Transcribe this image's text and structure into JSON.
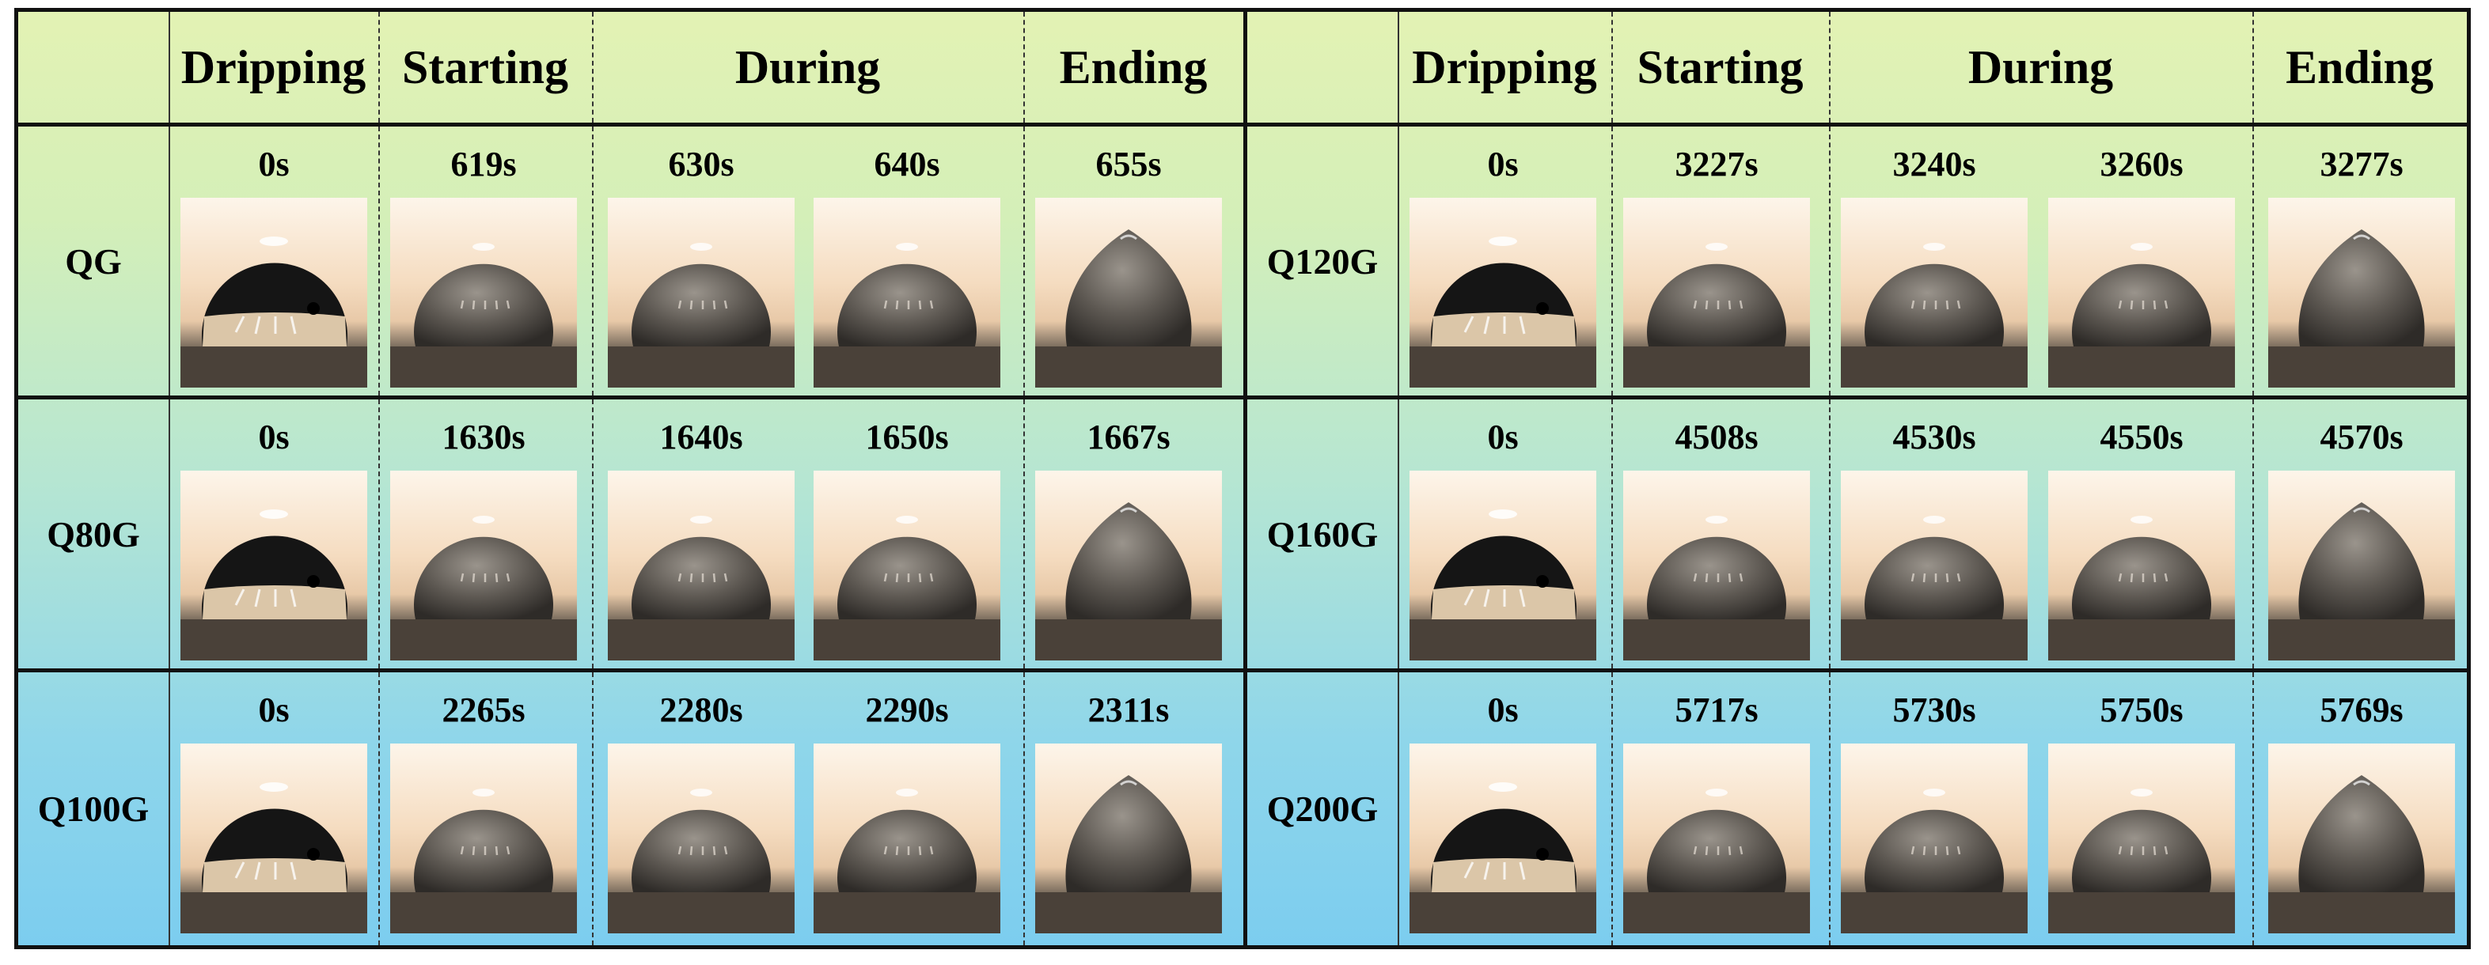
{
  "headers": {
    "dripping": "Dripping",
    "starting": "Starting",
    "during": "During",
    "ending": "Ending"
  },
  "left_panel": {
    "rows": [
      {
        "label": "QG",
        "times": [
          "0s",
          "619s",
          "630s",
          "640s",
          "655s"
        ]
      },
      {
        "label": "Q80G",
        "times": [
          "0s",
          "1630s",
          "1640s",
          "1650s",
          "1667s"
        ]
      },
      {
        "label": "Q100G",
        "times": [
          "0s",
          "2265s",
          "2280s",
          "2290s",
          "2311s"
        ]
      }
    ]
  },
  "right_panel": {
    "rows": [
      {
        "label": "Q120G",
        "times": [
          "0s",
          "3227s",
          "3240s",
          "3260s",
          "3277s"
        ]
      },
      {
        "label": "Q160G",
        "times": [
          "0s",
          "4508s",
          "4530s",
          "4550s",
          "4570s"
        ]
      },
      {
        "label": "Q200G",
        "times": [
          "0s",
          "5717s",
          "5730s",
          "5750s",
          "5769s"
        ]
      }
    ]
  },
  "colors": {
    "background_top": "#e3f2b4",
    "background_bottom": "#7ccdef",
    "grid_lines": "#111111"
  }
}
